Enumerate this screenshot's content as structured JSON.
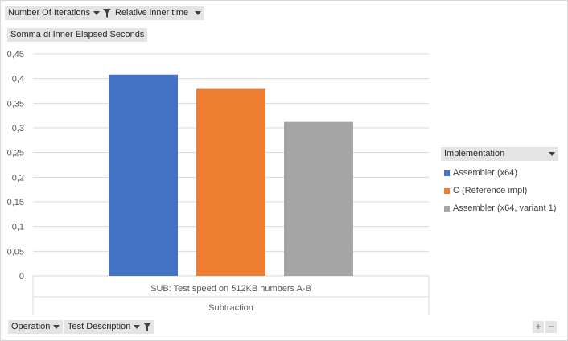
{
  "filters": {
    "top": [
      {
        "label": "Number Of Iterations",
        "icons": [
          "dropdown-arrow-icon",
          "filter-icon"
        ]
      },
      {
        "label": "Relative inner time",
        "icons": [
          "dropdown-arrow-icon"
        ]
      }
    ],
    "bottom": [
      {
        "label": "Operation",
        "icons": [
          "dropdown-arrow-icon"
        ]
      },
      {
        "label": "Test Description",
        "icons": [
          "dropdown-arrow-icon",
          "filter-icon"
        ]
      }
    ]
  },
  "value_field": "Somma  di Inner Elapsed Seconds",
  "legend": {
    "title": "Implementation",
    "items": [
      {
        "label": "Assembler (x64)",
        "color": "#4472c4"
      },
      {
        "label": "C (Reference impl)",
        "color": "#ed7d31"
      },
      {
        "label": "Assembler (x64, variant 1)",
        "color": "#a5a5a5"
      }
    ]
  },
  "zoom": {
    "plus": "+",
    "minus": "−"
  },
  "chart_data": {
    "type": "bar",
    "categories": [
      "SUB: Test speed on 512KB numbers A-B"
    ],
    "group_label": "Subtraction",
    "series": [
      {
        "name": "Assembler (x64)",
        "values": [
          0.408
        ],
        "color": "#4472c4"
      },
      {
        "name": "C (Reference impl)",
        "values": [
          0.379
        ],
        "color": "#ed7d31"
      },
      {
        "name": "Assembler (x64, variant 1)",
        "values": [
          0.312
        ],
        "color": "#a5a5a5"
      }
    ],
    "ylim": [
      0,
      0.45
    ],
    "yticks": [
      "0",
      "0,05",
      "0,1",
      "0,15",
      "0,2",
      "0,25",
      "0,3",
      "0,35",
      "0,4",
      "0,45"
    ],
    "grid": true,
    "legend_position": "right"
  }
}
